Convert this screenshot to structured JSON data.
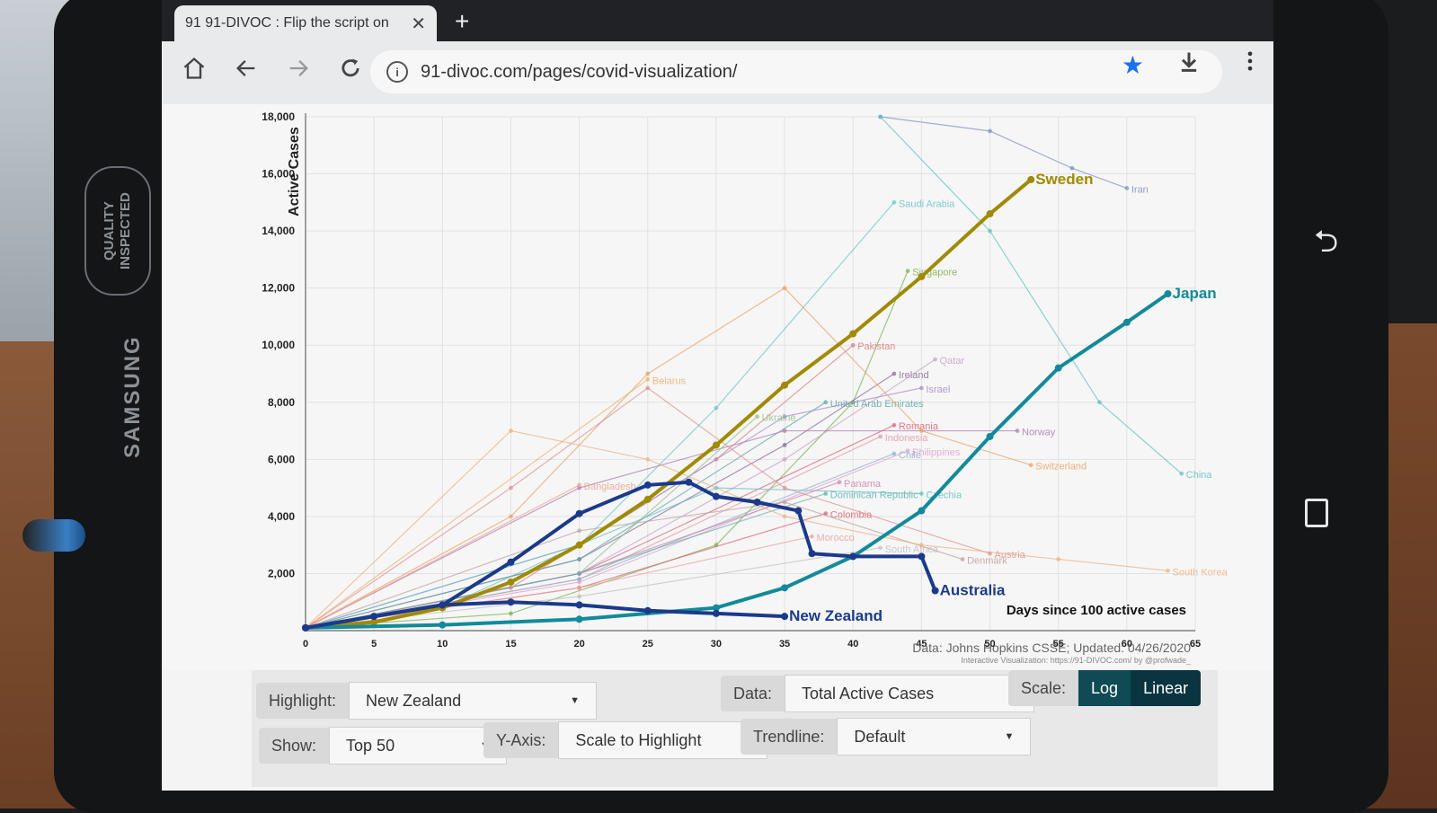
{
  "browser": {
    "tab_title": "91 91-DIVOC : Flip the script on",
    "close_glyph": "✕",
    "new_tab_glyph": "+",
    "url": "91-divoc.com/pages/covid-visualization/",
    "icons": [
      "home-icon",
      "back-icon",
      "forward-icon",
      "reload-icon",
      "info-icon",
      "star-icon",
      "download-icon",
      "menu-icon"
    ]
  },
  "device": {
    "brand": "SAMSUNG",
    "sticker": "QUALITY INSPECTED",
    "back_glyph": "⮌"
  },
  "chart_data": {
    "type": "line",
    "ylabel": "Active Cases",
    "xlabel": "Days since 100 active cases",
    "y_ticks": [
      2000,
      4000,
      6000,
      8000,
      10000,
      12000,
      14000,
      16000,
      18000
    ],
    "y_tick_labels": [
      "2,000",
      "4,000",
      "6,000",
      "8,000",
      "10,000",
      "12,000",
      "14,000",
      "16,000",
      "18,000"
    ],
    "x_ticks": [
      0,
      5,
      10,
      15,
      20,
      25,
      30,
      35,
      40,
      45,
      50,
      55,
      60,
      65
    ],
    "xlim": [
      0,
      65
    ],
    "ylim": [
      0,
      18000
    ],
    "grid": true,
    "source": "Data: Johns Hopkins CSSE; Updated: 04/26/2020",
    "credit": "Interactive Visualization: https://91-DIVOC.com/ by @profwade_",
    "highlighted_series": [
      {
        "name": "Sweden",
        "color": "#a08a00",
        "x": [
          0,
          5,
          10,
          15,
          20,
          25,
          30,
          35,
          40,
          45,
          50,
          53
        ],
        "y": [
          100,
          300,
          800,
          1700,
          3000,
          4600,
          6500,
          8600,
          10400,
          12400,
          14600,
          15800
        ]
      },
      {
        "name": "Japan",
        "color": "#128a9a",
        "x": [
          0,
          10,
          20,
          30,
          35,
          40,
          45,
          50,
          55,
          60,
          63
        ],
        "y": [
          100,
          200,
          400,
          800,
          1500,
          2600,
          4200,
          6800,
          9200,
          10800,
          11800
        ]
      },
      {
        "name": "Australia",
        "color": "#1b3a8a",
        "x": [
          0,
          10,
          15,
          20,
          25,
          28,
          30,
          33,
          36,
          37,
          40,
          45,
          46
        ],
        "y": [
          100,
          900,
          2400,
          4100,
          5100,
          5200,
          4700,
          4500,
          4200,
          2700,
          2600,
          2600,
          1400
        ]
      },
      {
        "name": "New Zealand",
        "color": "#1b3a8a",
        "x": [
          0,
          5,
          10,
          15,
          20,
          25,
          30,
          35
        ],
        "y": [
          100,
          500,
          900,
          1000,
          900,
          700,
          600,
          500
        ]
      }
    ],
    "other_series_labels": [
      {
        "name": "Saudi Arabia",
        "color": "#66c4c9",
        "x": [
          0,
          10,
          20,
          30,
          43
        ],
        "y": [
          100,
          800,
          3000,
          7800,
          15000
        ]
      },
      {
        "name": "Iran",
        "color": "#7c8fc4",
        "x": [
          42,
          50,
          56,
          60
        ],
        "y": [
          18000,
          17500,
          16200,
          15500
        ]
      },
      {
        "name": "Singapore",
        "color": "#7ab04a",
        "x": [
          0,
          15,
          30,
          40,
          44
        ],
        "y": [
          100,
          600,
          3000,
          8000,
          12600
        ]
      },
      {
        "name": "Pakistan",
        "color": "#e07a7a",
        "x": [
          0,
          15,
          30,
          40
        ],
        "y": [
          100,
          1500,
          6000,
          10000
        ]
      },
      {
        "name": "Qatar",
        "color": "#c9a0c9",
        "x": [
          0,
          20,
          35,
          46
        ],
        "y": [
          100,
          2000,
          6000,
          9500
        ]
      },
      {
        "name": "Ireland",
        "color": "#8a6a9a",
        "x": [
          0,
          20,
          35,
          43
        ],
        "y": [
          100,
          2500,
          6500,
          9000
        ]
      },
      {
        "name": "Israel",
        "color": "#a78bc7",
        "x": [
          0,
          20,
          35,
          45
        ],
        "y": [
          100,
          3000,
          7500,
          8500
        ]
      },
      {
        "name": "United Arab Emirates",
        "color": "#5fa6a6",
        "x": [
          0,
          20,
          38
        ],
        "y": [
          100,
          2500,
          8000
        ]
      },
      {
        "name": "Romania",
        "color": "#e0607a",
        "x": [
          0,
          20,
          43
        ],
        "y": [
          100,
          2000,
          7200
        ]
      },
      {
        "name": "Indonesia",
        "color": "#e09aa0",
        "x": [
          0,
          20,
          42
        ],
        "y": [
          100,
          1800,
          6800
        ]
      },
      {
        "name": "Norway",
        "color": "#b07ab0",
        "x": [
          0,
          20,
          35,
          52
        ],
        "y": [
          100,
          5000,
          7000,
          7000
        ]
      },
      {
        "name": "Chile",
        "color": "#8bb0c9",
        "x": [
          0,
          20,
          43
        ],
        "y": [
          100,
          1800,
          6200
        ]
      },
      {
        "name": "Philippines",
        "color": "#e0a0d0",
        "x": [
          0,
          20,
          44
        ],
        "y": [
          100,
          1700,
          6300
        ]
      },
      {
        "name": "Switzerland",
        "color": "#f0a060",
        "x": [
          0,
          15,
          25,
          35,
          45,
          53
        ],
        "y": [
          100,
          4000,
          9000,
          12000,
          7000,
          5800
        ]
      },
      {
        "name": "China",
        "color": "#5fc0c0",
        "x": [
          42,
          50,
          58,
          64
        ],
        "y": [
          18000,
          14000,
          8000,
          5500
        ]
      },
      {
        "name": "Ukraine",
        "color": "#90c090",
        "x": [
          0,
          20,
          33
        ],
        "y": [
          100,
          2000,
          7500
        ]
      },
      {
        "name": "Belarus",
        "color": "#f0b070",
        "x": [
          0,
          25
        ],
        "y": [
          100,
          8800
        ]
      },
      {
        "name": "Bangladesh",
        "color": "#f0a090",
        "x": [
          0,
          20
        ],
        "y": [
          100,
          5100
        ]
      },
      {
        "name": "Panama",
        "color": "#d080b0",
        "x": [
          0,
          20,
          39
        ],
        "y": [
          100,
          2000,
          5200
        ]
      },
      {
        "name": "Dominican Republic",
        "color": "#60b0b0",
        "x": [
          0,
          20,
          38
        ],
        "y": [
          100,
          2000,
          4800
        ]
      },
      {
        "name": "Czechia",
        "color": "#60c0c0",
        "x": [
          0,
          20,
          30,
          45
        ],
        "y": [
          100,
          3000,
          5000,
          4800
        ]
      },
      {
        "name": "Colombia",
        "color": "#e06070",
        "x": [
          0,
          20,
          38
        ],
        "y": [
          100,
          1500,
          4100
        ]
      },
      {
        "name": "Morocco",
        "color": "#f0a0a0",
        "x": [
          0,
          20,
          37
        ],
        "y": [
          100,
          1500,
          3300
        ]
      },
      {
        "name": "South Africa",
        "color": "#c0c0c0",
        "x": [
          0,
          20,
          42
        ],
        "y": [
          100,
          1200,
          2900
        ]
      },
      {
        "name": "Denmark",
        "color": "#c0a0a0",
        "x": [
          0,
          20,
          35,
          48
        ],
        "y": [
          100,
          3500,
          4500,
          2500
        ]
      },
      {
        "name": "Austria",
        "color": "#e09090",
        "x": [
          0,
          15,
          25,
          35,
          50
        ],
        "y": [
          100,
          5000,
          8500,
          5000,
          2700
        ]
      },
      {
        "name": "South Korea",
        "color": "#f0b080",
        "x": [
          0,
          15,
          25,
          35,
          45,
          55,
          63
        ],
        "y": [
          100,
          7000,
          6000,
          4000,
          3000,
          2500,
          2100
        ]
      }
    ]
  },
  "controls": {
    "highlight_label": "Highlight:",
    "highlight_value": "New Zealand",
    "data_label": "Data:",
    "data_value": "Total Active Cases",
    "scale_label": "Scale:",
    "scale_options": [
      "Log",
      "Linear"
    ],
    "scale_selected": "Linear",
    "show_label": "Show:",
    "show_value": "Top 50",
    "yaxis_label": "Y-Axis:",
    "yaxis_value": "Scale to Highlight",
    "trendline_label": "Trendline:",
    "trendline_value": "Default"
  },
  "colors": {
    "log_button": "#0f4a55",
    "linear_button": "#0f3d48",
    "highlight_blue": "#1b3a8a",
    "sweden_gold": "#a08a00",
    "japan_teal": "#128a9a"
  }
}
